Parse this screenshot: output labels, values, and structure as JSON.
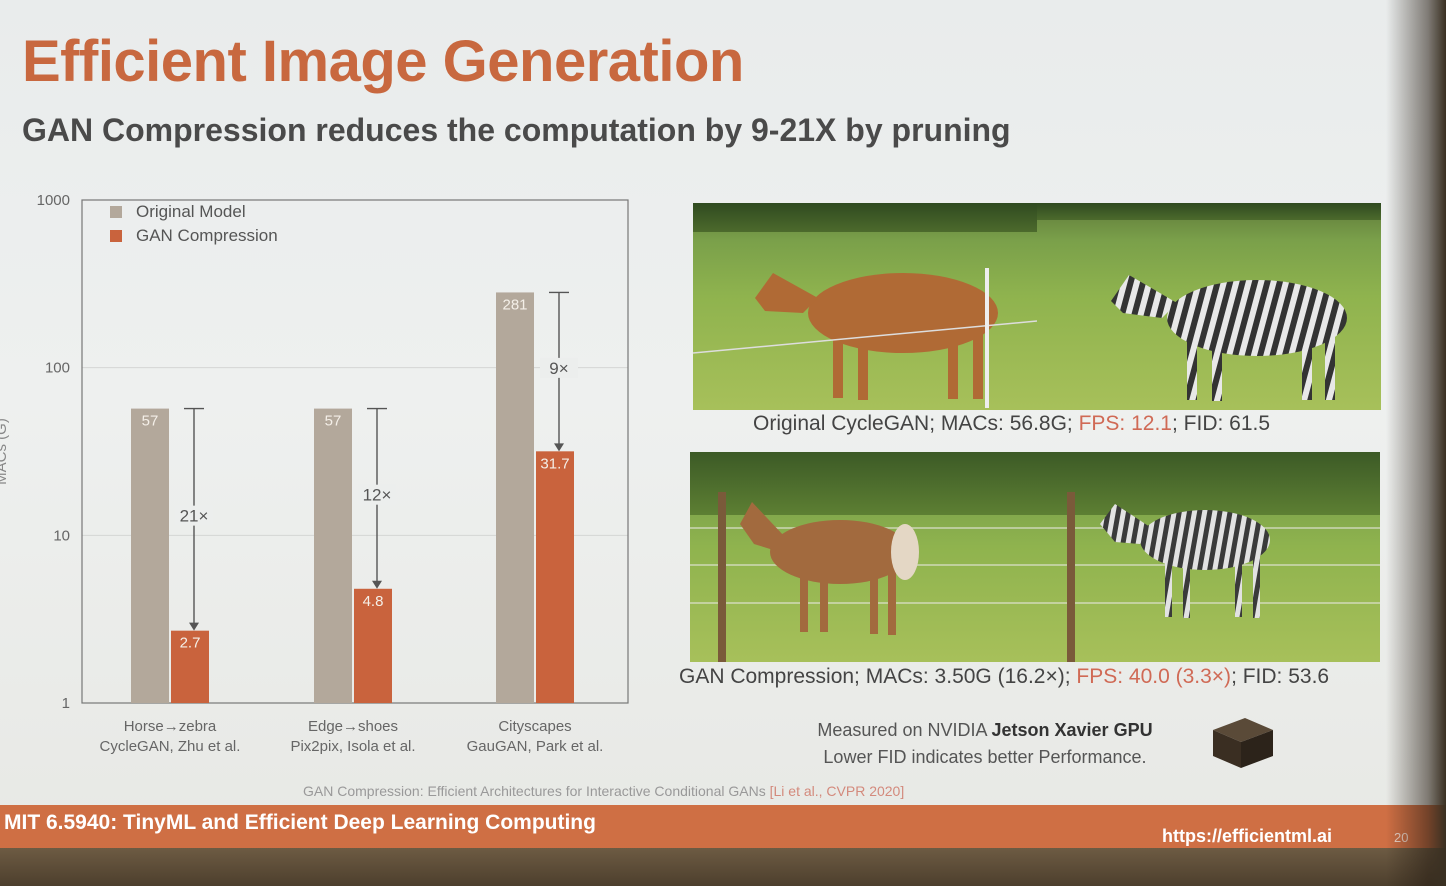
{
  "title": "Efficient Image Generation",
  "subtitle": "GAN Compression reduces the computation by 9-21X by pruning",
  "chart_data": {
    "type": "bar",
    "yscale": "log",
    "ylim": [
      1,
      1000
    ],
    "yticks": [
      "1000",
      "100",
      "10",
      "1"
    ],
    "ylabel": "MACs (G)",
    "legend_position": "top-left",
    "categories": [
      [
        "Horse→zebra",
        "CycleGAN, Zhu et al."
      ],
      [
        "Edge→shoes",
        "Pix2pix, Isola et al."
      ],
      [
        "Cityscapes",
        "GauGAN, Park et al."
      ]
    ],
    "series": [
      {
        "name": "Original Model",
        "color": "#b3a89b",
        "values": [
          57,
          57,
          281
        ],
        "labels": [
          "57",
          "57",
          "281"
        ]
      },
      {
        "name": "GAN Compression",
        "color": "#c9633d",
        "values": [
          2.7,
          4.8,
          31.7
        ],
        "labels": [
          "2.7",
          "4.8",
          "31.7"
        ]
      }
    ],
    "reductions": [
      "21×",
      "12×",
      "9×"
    ]
  },
  "captions": {
    "original": {
      "a": "Original CycleGAN; MACs: 56.8G; ",
      "b": "FPS: 12.1",
      "c": "; FID: 61.5"
    },
    "compressed": {
      "a": "GAN Compression; MACs: 3.50G (16.2×); ",
      "b": "FPS: 40.0 (3.3×)",
      "c": "; FID: 53.6"
    }
  },
  "measure": {
    "line1_prefix": "Measured on NVIDIA ",
    "line1_bold": "Jetson Xavier GPU",
    "line2": "Lower FID indicates better Performance."
  },
  "reference": {
    "text": "GAN Compression: Efficient Architectures for Interactive Conditional GANs ",
    "cite": "[Li et al., CVPR 2020]"
  },
  "footer": {
    "course": "MIT 6.5940: TinyML and Efficient Deep Learning Computing",
    "url": "https://efficientml.ai",
    "page": "20"
  },
  "colors": {
    "accent": "#c8683f",
    "footer": "#cf6f44"
  }
}
